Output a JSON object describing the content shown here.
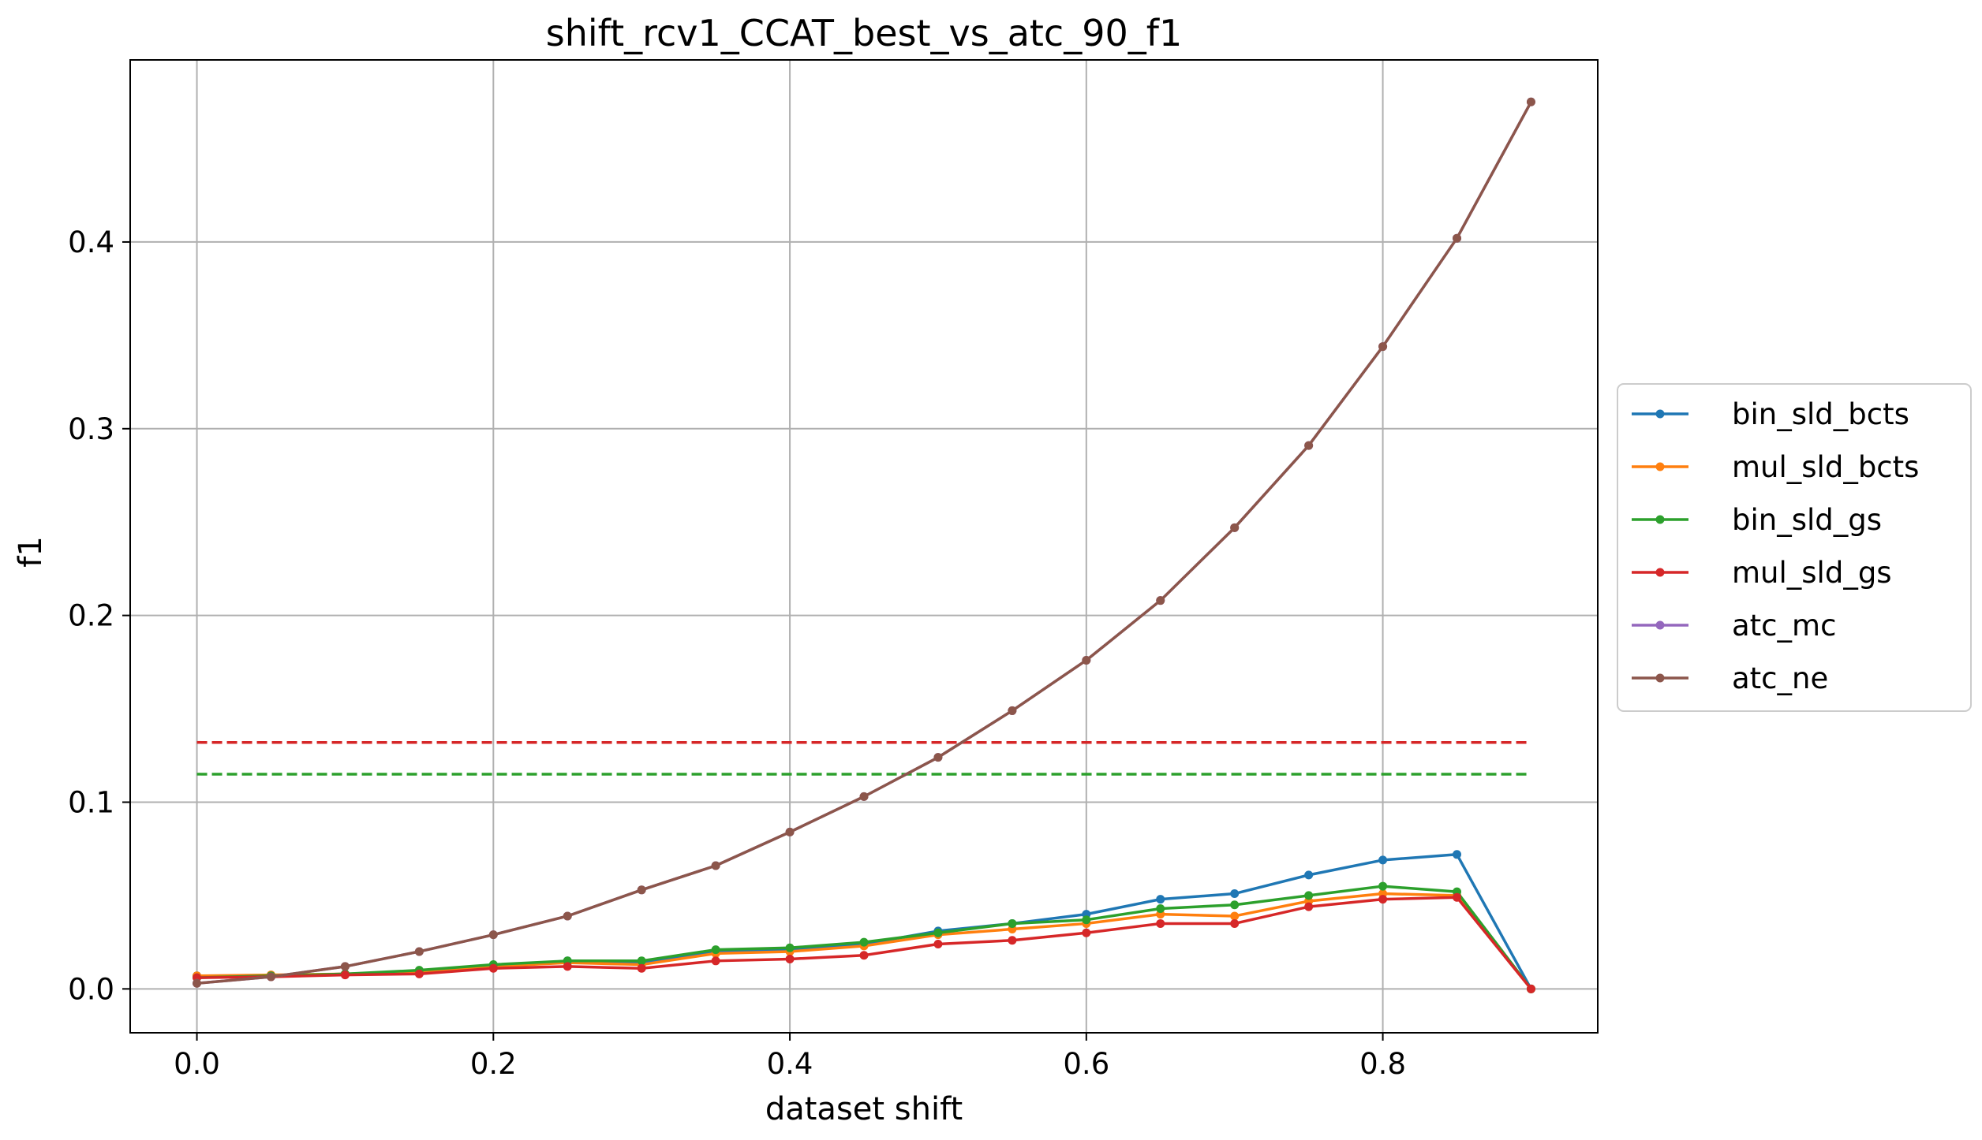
{
  "chart_data": {
    "type": "line",
    "title": "shift_rcv1_CCAT_best_vs_atc_90_f1",
    "xlabel": "dataset shift",
    "ylabel": "f1",
    "xlim": [
      -0.045,
      0.945
    ],
    "ylim": [
      -0.0235,
      0.4975
    ],
    "xticks": [
      0.0,
      0.2,
      0.4,
      0.6,
      0.8
    ],
    "xtick_labels": [
      "0.0",
      "0.2",
      "0.4",
      "0.6",
      "0.8"
    ],
    "yticks": [
      0.0,
      0.1,
      0.2,
      0.3,
      0.4
    ],
    "ytick_labels": [
      "0.0",
      "0.1",
      "0.2",
      "0.3",
      "0.4"
    ],
    "grid": true,
    "legend_position": "outside-right",
    "x": [
      0.0,
      0.05,
      0.1,
      0.15,
      0.2,
      0.25,
      0.3,
      0.35,
      0.4,
      0.45,
      0.5,
      0.55,
      0.6,
      0.65,
      0.7,
      0.75,
      0.8,
      0.85,
      0.9
    ],
    "series": [
      {
        "name": "bin_sld_bcts",
        "color": "#1f77b4",
        "values": [
          0.007,
          0.007,
          0.008,
          0.009,
          0.012,
          0.015,
          0.014,
          0.02,
          0.021,
          0.024,
          0.031,
          0.035,
          0.04,
          0.048,
          0.051,
          0.061,
          0.069,
          0.072,
          0.0
        ]
      },
      {
        "name": "mul_sld_bcts",
        "color": "#ff7f0e",
        "values": [
          0.007,
          0.0075,
          0.008,
          0.009,
          0.012,
          0.014,
          0.013,
          0.019,
          0.02,
          0.023,
          0.029,
          0.032,
          0.035,
          0.04,
          0.039,
          0.047,
          0.051,
          0.05,
          0.0
        ]
      },
      {
        "name": "bin_sld_gs",
        "color": "#2ca02c",
        "values": [
          0.006,
          0.007,
          0.008,
          0.01,
          0.013,
          0.015,
          0.015,
          0.021,
          0.022,
          0.025,
          0.03,
          0.035,
          0.037,
          0.043,
          0.045,
          0.05,
          0.055,
          0.052,
          0.0
        ]
      },
      {
        "name": "mul_sld_gs",
        "color": "#d62728",
        "values": [
          0.006,
          0.0065,
          0.0075,
          0.008,
          0.011,
          0.012,
          0.011,
          0.015,
          0.016,
          0.018,
          0.024,
          0.026,
          0.03,
          0.035,
          0.035,
          0.044,
          0.048,
          0.049,
          0.0
        ]
      },
      {
        "name": "atc_mc",
        "color": "#9467bd",
        "values": [
          0.003,
          0.0065,
          0.012,
          0.02,
          0.029,
          0.039,
          0.053,
          0.066,
          0.084,
          0.103,
          0.124,
          0.149,
          0.176,
          0.208,
          0.247,
          0.291,
          0.344,
          0.402,
          0.475
        ]
      },
      {
        "name": "atc_ne",
        "color": "#8c564b",
        "values": [
          0.003,
          0.0065,
          0.012,
          0.02,
          0.029,
          0.039,
          0.053,
          0.066,
          0.084,
          0.103,
          0.124,
          0.149,
          0.176,
          0.208,
          0.247,
          0.291,
          0.344,
          0.402,
          0.475
        ]
      }
    ],
    "reference_lines": [
      {
        "color": "#d62728",
        "y": 0.132,
        "x_range": [
          0.0,
          0.9
        ],
        "style": "dashed"
      },
      {
        "color": "#2ca02c",
        "y": 0.115,
        "x_range": [
          0.0,
          0.9
        ],
        "style": "dashed"
      }
    ]
  }
}
